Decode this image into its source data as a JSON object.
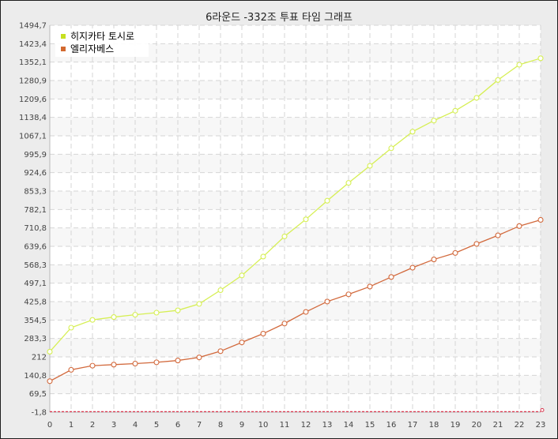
{
  "chart_data": {
    "type": "line",
    "title": "6라운드 -332조 투표 타임 그래프",
    "xlabel": "",
    "ylabel": "",
    "x": [
      0,
      1,
      2,
      3,
      4,
      5,
      6,
      7,
      8,
      9,
      10,
      11,
      12,
      13,
      14,
      15,
      16,
      17,
      18,
      19,
      20,
      21,
      22,
      23
    ],
    "ylim": [
      -1.8,
      1494.7
    ],
    "y_ticks": [
      "-1,8",
      "69,5",
      "140,8",
      "212",
      "283,3",
      "354,5",
      "425,8",
      "497,1",
      "568,3",
      "639,6",
      "710,8",
      "782,1",
      "853,3",
      "924,6",
      "995,9",
      "1067,1",
      "1138,4",
      "1209,6",
      "1280,9",
      "1352,1",
      "1423,4",
      "1494,7"
    ],
    "x_ticks": [
      "0",
      "1",
      "2",
      "3",
      "4",
      "5",
      "6",
      "7",
      "8",
      "9",
      "10",
      "11",
      "12",
      "13",
      "14",
      "15",
      "16",
      "17",
      "18",
      "19",
      "20",
      "21",
      "22",
      "23"
    ],
    "grid": true,
    "legend": "top-left",
    "series": [
      {
        "name": "히지카타 토시로",
        "color": "#d6ef54",
        "values": [
          232,
          325,
          355,
          366,
          375,
          383,
          392,
          417,
          470,
          527,
          600,
          678,
          744,
          816,
          885,
          951,
          1019,
          1083,
          1126,
          1164,
          1214,
          1283,
          1342,
          1367
        ]
      },
      {
        "name": "엘리자베스",
        "color": "#d2693c",
        "values": [
          118,
          162,
          178,
          182,
          186,
          191,
          198,
          210,
          234,
          268,
          302,
          341,
          386,
          426,
          454,
          484,
          521,
          557,
          589,
          614,
          649,
          682,
          718,
          742
        ]
      },
      {
        "name": "",
        "color": "#d9364e",
        "values": [
          0,
          0,
          0,
          0,
          0,
          0,
          0,
          0,
          0,
          0,
          0,
          0,
          0,
          0,
          0,
          0,
          0,
          0,
          0,
          0,
          0,
          0,
          0,
          0
        ]
      }
    ]
  }
}
